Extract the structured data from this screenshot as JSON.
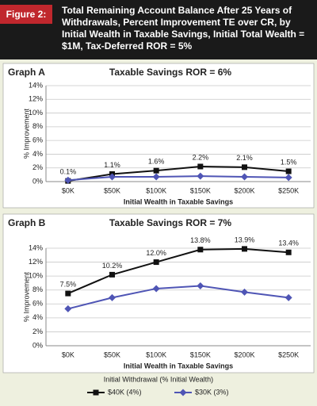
{
  "figure_label": "Figure 2:",
  "title": "Total Remaining Account Balance After 25 Years of Withdrawals, Percent Improvement TE over CR, by Initial Wealth in Taxable Savings, Initial Total Wealth = $1M, Tax-Deferred ROR = 5%",
  "legend_title": "Initial Withdrawal (% Initial Wealth)",
  "chart_data": [
    {
      "type": "line",
      "label": "Graph A",
      "title": "Taxable Savings ROR = 6%",
      "x_label": "Initial Wealth in Taxable Savings",
      "y_label": "% Improvement",
      "categories": [
        "$0K",
        "$50K",
        "$100K",
        "$150K",
        "$200K",
        "$250K"
      ],
      "series": [
        {
          "name": "$40K (4%)",
          "color": "#111111",
          "marker": "square",
          "values": [
            0.1,
            1.1,
            1.6,
            2.2,
            2.1,
            1.5
          ],
          "value_labels": [
            "0.1%",
            "1.1%",
            "1.6%",
            "2.2%",
            "2.1%",
            "1.5%"
          ]
        },
        {
          "name": "$30K (3%)",
          "color": "#4f55b5",
          "marker": "diamond",
          "values": [
            0.2,
            0.7,
            0.7,
            0.8,
            0.7,
            0.6
          ]
        }
      ],
      "ylim": [
        0,
        14
      ],
      "yticks": [
        {
          "value": 0,
          "label": "0%"
        },
        {
          "value": 2,
          "label": "2%"
        },
        {
          "value": 4,
          "label": "4%"
        },
        {
          "value": 6,
          "label": "6%"
        },
        {
          "value": 8,
          "label": "8%"
        },
        {
          "value": 10,
          "label": "10%"
        },
        {
          "value": 12,
          "label": "12%"
        },
        {
          "value": 14,
          "label": "14%"
        }
      ],
      "grid": true
    },
    {
      "type": "line",
      "label": "Graph B",
      "title": "Taxable Savings ROR = 7%",
      "x_label": "Initial Wealth in Taxable Savings",
      "y_label": "% Improvement",
      "categories": [
        "$0K",
        "$50K",
        "$100K",
        "$150K",
        "$200K",
        "$250K"
      ],
      "series": [
        {
          "name": "$40K (4%)",
          "color": "#111111",
          "marker": "square",
          "values": [
            7.5,
            10.2,
            12.0,
            13.8,
            13.9,
            13.4
          ],
          "value_labels": [
            "7.5%",
            "10.2%",
            "12.0%",
            "13.8%",
            "13.9%",
            "13.4%"
          ]
        },
        {
          "name": "$30K (3%)",
          "color": "#4f55b5",
          "marker": "diamond",
          "values": [
            5.3,
            6.9,
            8.2,
            8.6,
            7.7,
            6.9
          ]
        }
      ],
      "ylim": [
        0,
        14
      ],
      "yticks": [
        {
          "value": 0,
          "label": "0%"
        },
        {
          "value": 2,
          "label": "2%"
        },
        {
          "value": 4,
          "label": "4%"
        },
        {
          "value": 6,
          "label": "6%"
        },
        {
          "value": 8,
          "label": "8%"
        },
        {
          "value": 10,
          "label": "10%"
        },
        {
          "value": 12,
          "label": "12%"
        },
        {
          "value": 14,
          "label": "14%"
        }
      ],
      "grid": true
    }
  ]
}
